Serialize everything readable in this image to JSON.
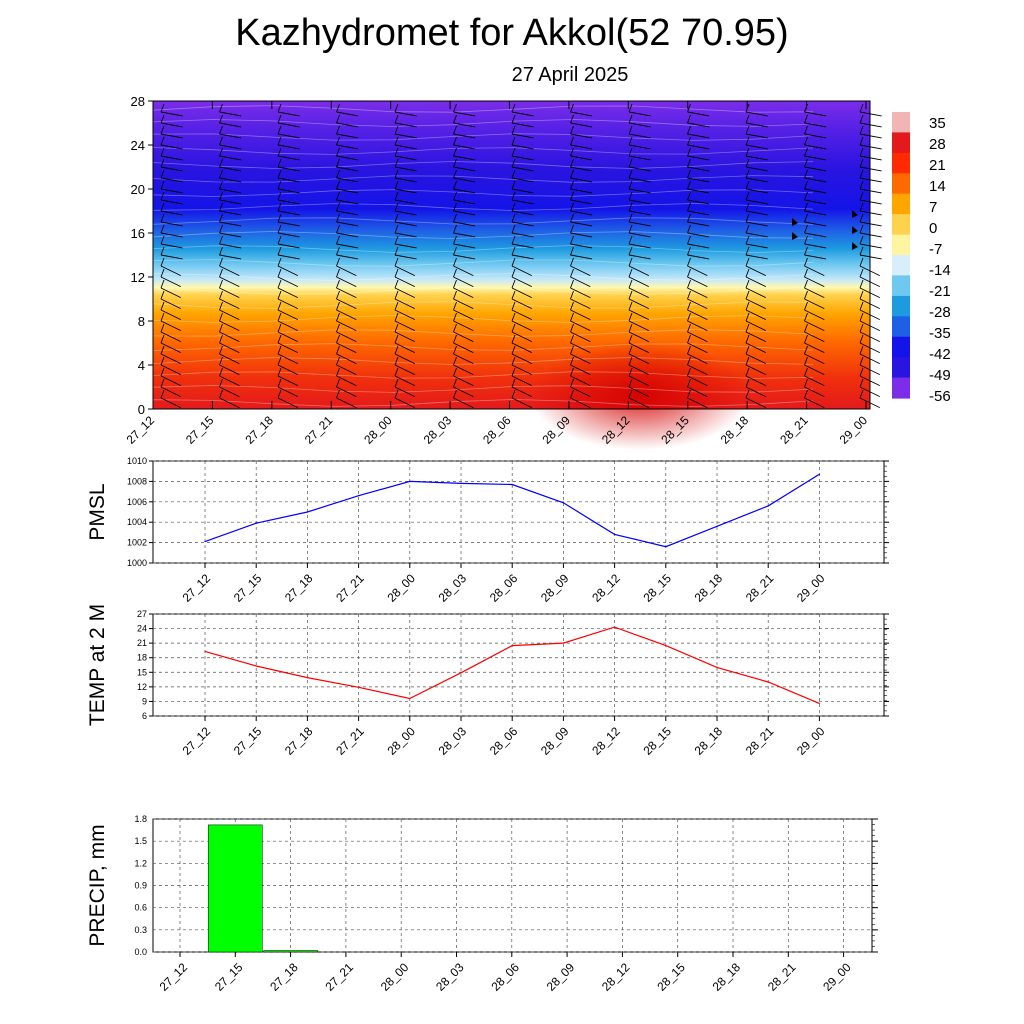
{
  "header": {
    "title": "Kazhydromet for Akkol(52 70.95)",
    "date": "27 April 2025"
  },
  "time_labels": [
    "27_12",
    "27_15",
    "27_18",
    "27_21",
    "28_00",
    "28_03",
    "28_06",
    "28_09",
    "28_12",
    "28_15",
    "28_18",
    "28_21",
    "29_00"
  ],
  "chart_data": [
    {
      "type": "heatmap",
      "name": "cross-section",
      "y_ticks": [
        0,
        4,
        8,
        12,
        16,
        20,
        24,
        28
      ],
      "ylim": [
        0,
        28
      ],
      "colorbar_labels": [
        "35",
        "28",
        "21",
        "14",
        "7",
        "0",
        "-7",
        "-14",
        "-21",
        "-28",
        "-35",
        "-42",
        "-49",
        "-56"
      ],
      "colorbar_colors": [
        "#f2b5b5",
        "#e31a1c",
        "#ff2a00",
        "#ff6a00",
        "#ffa500",
        "#ffd24d",
        "#fff5a0",
        "#d8eefb",
        "#6ec8f0",
        "#1e9be0",
        "#1f5fe6",
        "#1414e8",
        "#2a14e0",
        "#7b2de8"
      ],
      "barbs": "wind-barbs"
    },
    {
      "type": "line",
      "name": "pmsl",
      "ylabel": "PMSL",
      "ylim": [
        1000,
        1010
      ],
      "y_ticks": [
        1000,
        1002,
        1004,
        1006,
        1008,
        1010
      ],
      "values": [
        1002.1,
        1003.9,
        1005.0,
        1006.6,
        1008.0,
        1007.8,
        1007.7,
        1005.9,
        1002.8,
        1001.6,
        1003.6,
        1005.6,
        1008.7
      ],
      "color": "#0000ff"
    },
    {
      "type": "line",
      "name": "temp2m",
      "ylabel": "TEMP at 2 M",
      "ylim": [
        6,
        27
      ],
      "y_ticks": [
        6,
        9,
        12,
        15,
        18,
        21,
        24,
        27
      ],
      "values": [
        19.3,
        16.3,
        13.9,
        11.9,
        9.6,
        14.9,
        20.5,
        21.0,
        24.3,
        20.5,
        16.0,
        13.0,
        8.6
      ],
      "color": "#ff0000"
    },
    {
      "type": "bar",
      "name": "precip",
      "ylabel": "PRECIP, mm",
      "ylim": [
        0,
        1.8
      ],
      "y_ticks": [
        "0.0",
        "0.3",
        "0.6",
        "0.9",
        "1.2",
        "1.5",
        "1.8"
      ],
      "values": [
        0,
        1.72,
        0.02,
        0,
        0,
        0,
        0,
        0,
        0,
        0,
        0,
        0,
        0
      ],
      "color": "#00ff00"
    }
  ]
}
